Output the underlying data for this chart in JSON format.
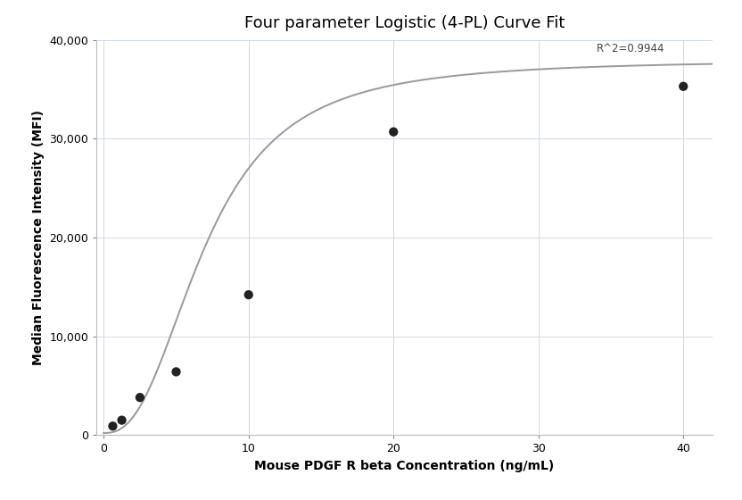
{
  "title": "Four parameter Logistic (4-PL) Curve Fit",
  "xlabel": "Mouse PDGF R beta Concentration (ng/mL)",
  "ylabel": "Median Fluorescence Intensity (MFI)",
  "scatter_x": [
    0.625,
    1.25,
    2.5,
    5.0,
    10.0,
    20.0,
    40.0
  ],
  "scatter_y": [
    900,
    1500,
    3800,
    6400,
    14200,
    30700,
    35300
  ],
  "xlim": [
    -0.5,
    42
  ],
  "ylim": [
    0,
    40000
  ],
  "yticks": [
    0,
    10000,
    20000,
    30000,
    40000
  ],
  "xticks": [
    0,
    10,
    20,
    30,
    40
  ],
  "r_squared_text": "R^2=0.9944",
  "r_squared_x": 34.0,
  "r_squared_y": 38500,
  "dot_color": "#222222",
  "dot_size": 55,
  "curve_color": "#999999",
  "curve_lw": 1.4,
  "grid_color": "#d0d8e8",
  "background_color": "#ffffff",
  "4pl_A": 200,
  "4pl_B": 2.5,
  "4pl_C": 7.0,
  "4pl_D": 38000,
  "title_fontsize": 13,
  "axis_label_fontsize": 10,
  "tick_fontsize": 9,
  "annotation_fontsize": 8.5
}
